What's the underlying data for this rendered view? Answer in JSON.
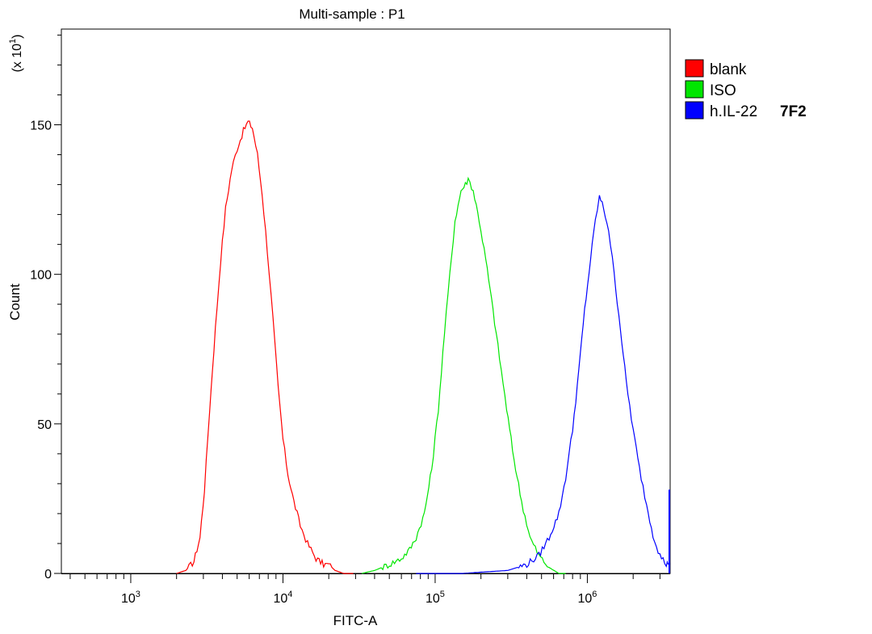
{
  "chart_data": {
    "type": "line",
    "title": "Multi-sample : P1",
    "xlabel": "FITC-A",
    "ylabel": "Count",
    "y_multiplier": "(x 10",
    "y_multiplier_exp": "1",
    "y_multiplier_close": ")",
    "x_scale": "log",
    "xlim": [
      350,
      3500000
    ],
    "ylim": [
      0,
      182
    ],
    "x_tick_labels": [
      {
        "value": 1000,
        "base": "10",
        "exp": "3"
      },
      {
        "value": 10000,
        "base": "10",
        "exp": "4"
      },
      {
        "value": 100000,
        "base": "10",
        "exp": "5"
      },
      {
        "value": 1000000,
        "base": "10",
        "exp": "6"
      }
    ],
    "y_ticks": [
      0,
      50,
      100,
      150
    ],
    "legend_position": "right",
    "grid": false,
    "series": [
      {
        "name": "blank",
        "color": "#ff0000",
        "points": [
          [
            2000,
            0
          ],
          [
            2300,
            1
          ],
          [
            2600,
            4
          ],
          [
            2850,
            12
          ],
          [
            3050,
            28
          ],
          [
            3300,
            55
          ],
          [
            3600,
            82
          ],
          [
            3900,
            105
          ],
          [
            4200,
            122
          ],
          [
            4600,
            135
          ],
          [
            5000,
            142
          ],
          [
            5500,
            148
          ],
          [
            5900,
            151
          ],
          [
            6300,
            149
          ],
          [
            6800,
            140
          ],
          [
            7300,
            127
          ],
          [
            7900,
            108
          ],
          [
            8600,
            85
          ],
          [
            9300,
            62
          ],
          [
            10000,
            45
          ],
          [
            10800,
            33
          ],
          [
            11800,
            24
          ],
          [
            13000,
            16
          ],
          [
            14500,
            10
          ],
          [
            16500,
            5
          ],
          [
            18500,
            3
          ],
          [
            20000,
            3
          ],
          [
            22000,
            1
          ],
          [
            25000,
            0
          ],
          [
            29000,
            0
          ]
        ]
      },
      {
        "name": "ISO",
        "color": "#00e600",
        "points": [
          [
            33000,
            0
          ],
          [
            40000,
            1
          ],
          [
            50000,
            3
          ],
          [
            60000,
            5
          ],
          [
            68000,
            8
          ],
          [
            75000,
            12
          ],
          [
            85000,
            20
          ],
          [
            95000,
            35
          ],
          [
            105000,
            55
          ],
          [
            115000,
            80
          ],
          [
            125000,
            100
          ],
          [
            135000,
            118
          ],
          [
            148000,
            128
          ],
          [
            158000,
            130
          ],
          [
            165000,
            132
          ],
          [
            178000,
            128
          ],
          [
            195000,
            118
          ],
          [
            215000,
            105
          ],
          [
            240000,
            88
          ],
          [
            265000,
            72
          ],
          [
            295000,
            55
          ],
          [
            330000,
            38
          ],
          [
            370000,
            24
          ],
          [
            420000,
            12
          ],
          [
            480000,
            6
          ],
          [
            560000,
            2
          ],
          [
            650000,
            0
          ],
          [
            720000,
            0
          ]
        ]
      },
      {
        "name": "h.IL-22",
        "color": "#0000ff",
        "points": [
          [
            75000,
            0
          ],
          [
            150000,
            0
          ],
          [
            300000,
            1
          ],
          [
            400000,
            3
          ],
          [
            480000,
            6
          ],
          [
            560000,
            12
          ],
          [
            650000,
            20
          ],
          [
            720000,
            32
          ],
          [
            800000,
            48
          ],
          [
            880000,
            68
          ],
          [
            960000,
            88
          ],
          [
            1050000,
            105
          ],
          [
            1130000,
            118
          ],
          [
            1200000,
            126
          ],
          [
            1280000,
            122
          ],
          [
            1380000,
            115
          ],
          [
            1500000,
            100
          ],
          [
            1650000,
            82
          ],
          [
            1800000,
            64
          ],
          [
            2000000,
            48
          ],
          [
            2200000,
            35
          ],
          [
            2450000,
            23
          ],
          [
            2700000,
            13
          ],
          [
            3000000,
            6
          ],
          [
            3300000,
            3
          ],
          [
            3400000,
            3
          ]
        ]
      }
    ],
    "edge_bar": {
      "x": 3450000,
      "y": 28,
      "color": "#0000ff"
    },
    "legend_suffix": "7F2"
  }
}
